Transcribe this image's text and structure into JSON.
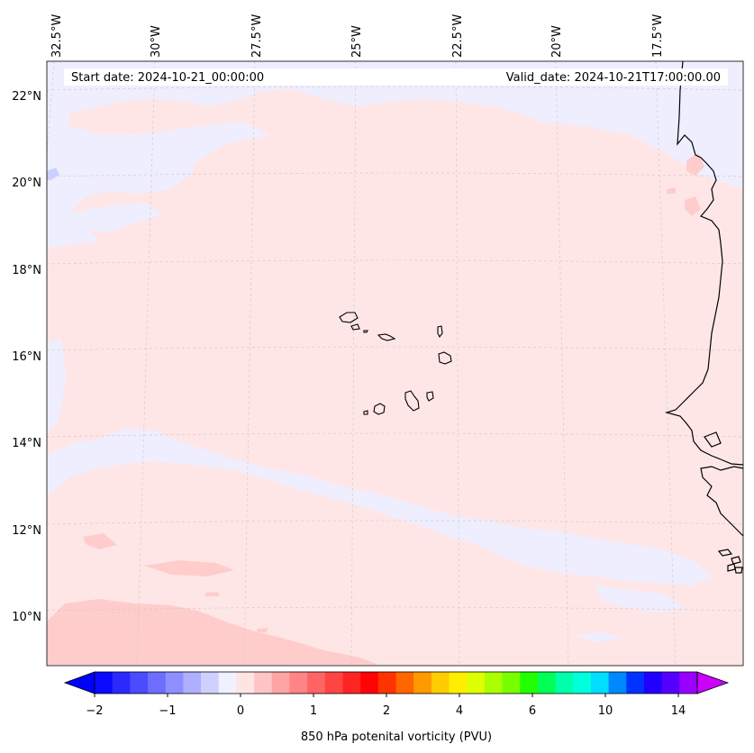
{
  "map": {
    "start_label": "Start date: 2024-10-21_00:00:00",
    "valid_label": "Valid_date: 2024-10-21T17:00:00.00",
    "lon_labels": [
      "32.5°W",
      "30°W",
      "27.5°W",
      "25°W",
      "22.5°W",
      "20°W",
      "17.5°W"
    ],
    "lat_labels": [
      "22°N",
      "20°N",
      "18°N",
      "16°N",
      "14°N",
      "12°N",
      "10°N"
    ],
    "field_colors": {
      "background": "#ffe6e6",
      "negative": "#eeeeff",
      "positive": "#ffcccc",
      "strong_negative": "#ccd0ff"
    }
  },
  "colorbar": {
    "label": "850 hPa potenital vorticity (PVU)",
    "ticks": [
      "−2",
      "−1",
      "0",
      "1",
      "2",
      "4",
      "6",
      "10",
      "14"
    ],
    "colors": [
      "#0a0aff",
      "#2a2aff",
      "#4b4bff",
      "#6d6dff",
      "#8e8eff",
      "#afafff",
      "#d0d0ff",
      "#f0f0ff",
      "#ffe4e4",
      "#ffc4c4",
      "#ffa4a4",
      "#ff8484",
      "#ff6464",
      "#ff4444",
      "#ff2424",
      "#ff0404",
      "#ff3300",
      "#ff6600",
      "#ff9900",
      "#ffcc00",
      "#ffee00",
      "#ddff00",
      "#aaff00",
      "#77ff00",
      "#22ff00",
      "#00ff55",
      "#00ffaa",
      "#00ffdd",
      "#00ddff",
      "#0088ff",
      "#0033ff",
      "#2200ff",
      "#5500ff",
      "#9900ff"
    ],
    "under_color": "#0000ff",
    "over_color": "#cc00ff"
  }
}
